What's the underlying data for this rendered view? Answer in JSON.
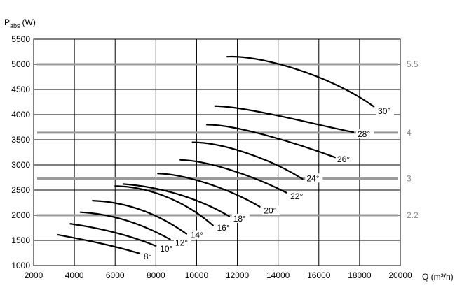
{
  "chart_data": {
    "type": "line",
    "xlabel": "Q (m³/h)",
    "ylabel_main": "P",
    "ylabel_sub": "abs",
    "ylabel_unit": "(W)",
    "xlim": [
      2000,
      20000
    ],
    "ylim": [
      1000,
      5500
    ],
    "x_ticks": [
      2000,
      4000,
      6000,
      8000,
      10000,
      12000,
      14000,
      16000,
      18000,
      20000
    ],
    "y_ticks": [
      1000,
      1500,
      2000,
      2500,
      3000,
      3500,
      4000,
      4500,
      5000,
      5500
    ],
    "grid": true,
    "reference_lines": [
      {
        "label": "2.2",
        "y": 2000
      },
      {
        "label": "3",
        "y": 2730
      },
      {
        "label": "4",
        "y": 3640
      },
      {
        "label": "5.5",
        "y": 5000
      }
    ],
    "series": [
      {
        "name": "8°",
        "points": [
          [
            3200,
            1610
          ],
          [
            4500,
            1510
          ],
          [
            5800,
            1410
          ],
          [
            7200,
            1240
          ]
        ],
        "label_at": [
          7400,
          1210
        ]
      },
      {
        "name": "10°",
        "points": [
          [
            3800,
            1830
          ],
          [
            5200,
            1750
          ],
          [
            6600,
            1620
          ],
          [
            8000,
            1390
          ]
        ],
        "label_at": [
          8200,
          1360
        ]
      },
      {
        "name": "12°",
        "points": [
          [
            4300,
            2060
          ],
          [
            5600,
            2030
          ],
          [
            7000,
            1900
          ],
          [
            8700,
            1520
          ]
        ],
        "label_at": [
          8950,
          1480
        ]
      },
      {
        "name": "14°",
        "points": [
          [
            4900,
            2290
          ],
          [
            6200,
            2270
          ],
          [
            7800,
            2120
          ],
          [
            9500,
            1630
          ]
        ],
        "label_at": [
          9700,
          1630
        ]
      },
      {
        "name": "16°",
        "points": [
          [
            6000,
            2580
          ],
          [
            7400,
            2570
          ],
          [
            9200,
            2360
          ],
          [
            10800,
            1800
          ]
        ],
        "label_at": [
          11000,
          1780
        ]
      },
      {
        "name": "18°",
        "points": [
          [
            6400,
            2620
          ],
          [
            8100,
            2570
          ],
          [
            10000,
            2360
          ],
          [
            11600,
            1980
          ]
        ],
        "label_at": [
          11800,
          1960
        ]
      },
      {
        "name": "20°",
        "points": [
          [
            8100,
            2830
          ],
          [
            9300,
            2820
          ],
          [
            11400,
            2570
          ],
          [
            13100,
            2170
          ]
        ],
        "label_at": [
          13300,
          2120
        ]
      },
      {
        "name": "22°",
        "points": [
          [
            9200,
            3100
          ],
          [
            10500,
            3090
          ],
          [
            12700,
            2800
          ],
          [
            14400,
            2450
          ]
        ],
        "label_at": [
          14600,
          2400
        ]
      },
      {
        "name": "24°",
        "points": [
          [
            9800,
            3450
          ],
          [
            11200,
            3450
          ],
          [
            13500,
            3150
          ],
          [
            15200,
            2720
          ]
        ],
        "label_at": [
          15400,
          2760
        ]
      },
      {
        "name": "26°",
        "points": [
          [
            10500,
            3800
          ],
          [
            11900,
            3800
          ],
          [
            14800,
            3450
          ],
          [
            16800,
            3150
          ]
        ],
        "label_at": [
          16900,
          3140
        ]
      },
      {
        "name": "28°",
        "points": [
          [
            10900,
            4170
          ],
          [
            12500,
            4160
          ],
          [
            15800,
            3800
          ],
          [
            17700,
            3650
          ]
        ],
        "label_at": [
          17900,
          3640
        ]
      },
      {
        "name": "30°",
        "points": [
          [
            11500,
            5150
          ],
          [
            13000,
            5190
          ],
          [
            16500,
            4800
          ],
          [
            18700,
            4160
          ]
        ],
        "label_at": [
          18900,
          4100
        ]
      }
    ]
  }
}
